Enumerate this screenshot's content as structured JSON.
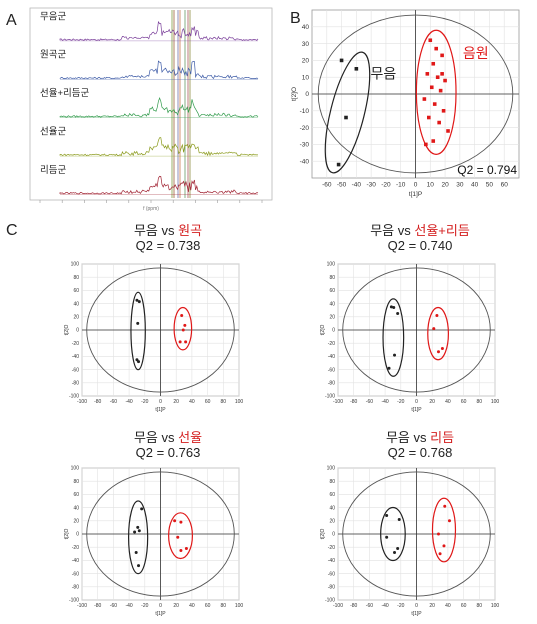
{
  "panels": {
    "A": "A",
    "B": "B",
    "C": "C"
  },
  "panel_a": {
    "labels": [
      "무음군",
      "원곡군",
      "선율+리듬군",
      "선율군",
      "리듬군"
    ],
    "colors": [
      "#7a3f9a",
      "#3c5aa6",
      "#2f9a4a",
      "#8a9a1a",
      "#a02030"
    ],
    "xlabel": "f (ppm)"
  },
  "chart_data": [
    {
      "type": "scatter",
      "panel": "B",
      "xlabel": "t[1]P",
      "ylabel": "t[2]O",
      "xlim": [
        -70,
        70
      ],
      "ylim": [
        -50,
        50
      ],
      "xticks": [
        -60,
        -50,
        -40,
        -30,
        -20,
        -10,
        0,
        10,
        20,
        30,
        40,
        50,
        60
      ],
      "yticks": [
        -40,
        -30,
        -20,
        -10,
        0,
        10,
        20,
        30,
        40
      ],
      "grid": true,
      "annotation": "Q2 = 0.794",
      "groups": [
        {
          "label": "무음",
          "color": "#222222",
          "x": [
            -50,
            -40,
            -47,
            -52
          ],
          "y": [
            20,
            15,
            -14,
            -42
          ]
        },
        {
          "label": "음원",
          "color": "#e01818",
          "x": [
            10,
            14,
            18,
            12,
            8,
            15,
            20,
            11,
            17,
            6,
            13,
            19,
            9,
            16,
            22,
            12,
            7,
            18
          ],
          "y": [
            32,
            27,
            23,
            18,
            12,
            10,
            8,
            4,
            2,
            -3,
            -6,
            -10,
            -14,
            -17,
            -22,
            -28,
            -30,
            12
          ]
        }
      ]
    },
    {
      "type": "scatter",
      "panel": "C1",
      "title_black": "무음 vs ",
      "title_red": "원곡",
      "annotation": "Q2 = 0.738",
      "xlabel": "t[1]P",
      "ylabel": "t[2]O",
      "xlim": [
        -100,
        100
      ],
      "ylim": [
        -100,
        100
      ],
      "xticks": [
        -100,
        -80,
        -60,
        -40,
        -20,
        0,
        20,
        40,
        60,
        80,
        100
      ],
      "yticks": [
        -100,
        -80,
        -60,
        -40,
        -20,
        0,
        20,
        40,
        60,
        80,
        100
      ],
      "groups": [
        {
          "color": "#222222",
          "x": [
            -30,
            -27,
            -29,
            -30,
            -28
          ],
          "y": [
            45,
            43,
            10,
            -45,
            -48
          ]
        },
        {
          "color": "#e01818",
          "x": [
            27,
            31,
            29,
            25,
            32
          ],
          "y": [
            22,
            7,
            0,
            -18,
            -18
          ]
        }
      ]
    },
    {
      "type": "scatter",
      "panel": "C2",
      "title_black": "무음  vs ",
      "title_red": "선율+리듬",
      "annotation": "Q2 = 0.740",
      "xlabel": "t[1]P",
      "ylabel": "t[2]O",
      "xlim": [
        -100,
        100
      ],
      "ylim": [
        -100,
        100
      ],
      "xticks": [
        -100,
        -80,
        -60,
        -40,
        -20,
        0,
        20,
        40,
        60,
        80,
        100
      ],
      "yticks": [
        -100,
        -80,
        -60,
        -40,
        -20,
        0,
        20,
        40,
        60,
        80,
        100
      ],
      "groups": [
        {
          "color": "#222222",
          "x": [
            -32,
            -29,
            -24,
            -28,
            -35
          ],
          "y": [
            35,
            34,
            25,
            -38,
            -58
          ]
        },
        {
          "color": "#e01818",
          "x": [
            26,
            22,
            33,
            28
          ],
          "y": [
            22,
            2,
            -28,
            -33
          ]
        }
      ]
    },
    {
      "type": "scatter",
      "panel": "C3",
      "title_black": "무음 vs ",
      "title_red": "선율",
      "annotation": "Q2 = 0.763",
      "xlabel": "t[1]P",
      "ylabel": "t[2]O",
      "xlim": [
        -100,
        100
      ],
      "ylim": [
        -100,
        100
      ],
      "xticks": [
        -100,
        -80,
        -60,
        -40,
        -20,
        0,
        20,
        40,
        60,
        80,
        100
      ],
      "yticks": [
        -100,
        -80,
        -60,
        -40,
        -20,
        0,
        20,
        40,
        60,
        80,
        100
      ],
      "groups": [
        {
          "color": "#222222",
          "x": [
            -24,
            -29,
            -27,
            -33,
            -31,
            -28
          ],
          "y": [
            38,
            10,
            5,
            3,
            -28,
            -48
          ]
        },
        {
          "color": "#e01818",
          "x": [
            18,
            26,
            22,
            33,
            26
          ],
          "y": [
            20,
            18,
            -5,
            -22,
            -25
          ]
        }
      ]
    },
    {
      "type": "scatter",
      "panel": "C4",
      "title_black": "무음 vs ",
      "title_red": "리듬",
      "annotation": "Q2 = 0.768",
      "xlabel": "t[1]P",
      "ylabel": "t[2]O",
      "xlim": [
        -100,
        100
      ],
      "ylim": [
        -100,
        100
      ],
      "xticks": [
        -100,
        -80,
        -60,
        -40,
        -20,
        0,
        20,
        40,
        60,
        80,
        100
      ],
      "yticks": [
        -100,
        -80,
        -60,
        -40,
        -20,
        0,
        20,
        40,
        60,
        80,
        100
      ],
      "groups": [
        {
          "color": "#222222",
          "x": [
            -38,
            -22,
            -38,
            -24,
            -28
          ],
          "y": [
            28,
            22,
            -5,
            -22,
            -28
          ]
        },
        {
          "color": "#e01818",
          "x": [
            36,
            42,
            28,
            35,
            30
          ],
          "y": [
            42,
            20,
            0,
            -18,
            -30
          ]
        }
      ]
    }
  ]
}
